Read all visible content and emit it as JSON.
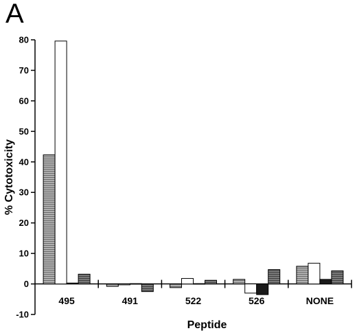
{
  "panel_label": "A",
  "chart_data": {
    "type": "bar",
    "xlabel": "Peptide",
    "ylabel": "% Cytotoxicity",
    "ylim": [
      -10,
      80
    ],
    "yticks": [
      -10,
      0,
      10,
      20,
      30,
      40,
      50,
      60,
      70,
      80
    ],
    "categories": [
      "495",
      "491",
      "522",
      "526",
      "NONE"
    ],
    "grid": false,
    "series": [
      {
        "fill": "#8c8c8c",
        "values": [
          42.3,
          -0.8,
          -1.2,
          1.5,
          5.8
        ]
      },
      {
        "fill": "#ffffff",
        "values": [
          79.6,
          -0.3,
          1.8,
          -3.0,
          6.8
        ]
      },
      {
        "fill": "#1a1a1a",
        "values": [
          0.3,
          0.1,
          0.1,
          -3.5,
          1.5
        ]
      },
      {
        "fill": "#6e6e6e",
        "values": [
          3.2,
          -2.5,
          1.2,
          4.7,
          4.3
        ]
      }
    ]
  }
}
